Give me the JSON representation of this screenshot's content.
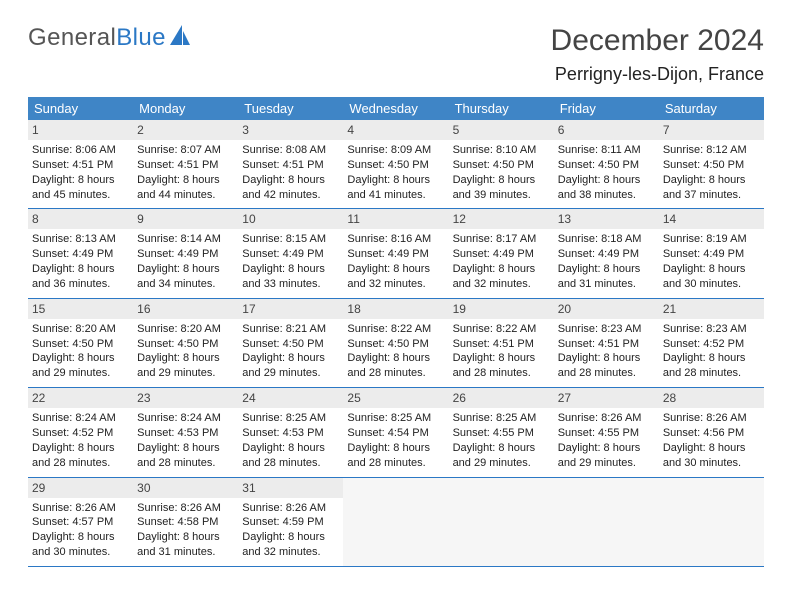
{
  "branding": {
    "general": "General",
    "blue": "Blue"
  },
  "header": {
    "month_title": "December 2024",
    "location": "Perrigny-les-Dijon, France"
  },
  "colors": {
    "header_bg": "#3f85c6",
    "rule": "#2b78c5",
    "daynum_bg": "#ececec"
  },
  "calendar": {
    "type": "table",
    "columns": [
      "Sunday",
      "Monday",
      "Tuesday",
      "Wednesday",
      "Thursday",
      "Friday",
      "Saturday"
    ],
    "weeks": [
      [
        {
          "day": "1",
          "sunrise": "Sunrise: 8:06 AM",
          "sunset": "Sunset: 4:51 PM",
          "daylight": "Daylight: 8 hours and 45 minutes."
        },
        {
          "day": "2",
          "sunrise": "Sunrise: 8:07 AM",
          "sunset": "Sunset: 4:51 PM",
          "daylight": "Daylight: 8 hours and 44 minutes."
        },
        {
          "day": "3",
          "sunrise": "Sunrise: 8:08 AM",
          "sunset": "Sunset: 4:51 PM",
          "daylight": "Daylight: 8 hours and 42 minutes."
        },
        {
          "day": "4",
          "sunrise": "Sunrise: 8:09 AM",
          "sunset": "Sunset: 4:50 PM",
          "daylight": "Daylight: 8 hours and 41 minutes."
        },
        {
          "day": "5",
          "sunrise": "Sunrise: 8:10 AM",
          "sunset": "Sunset: 4:50 PM",
          "daylight": "Daylight: 8 hours and 39 minutes."
        },
        {
          "day": "6",
          "sunrise": "Sunrise: 8:11 AM",
          "sunset": "Sunset: 4:50 PM",
          "daylight": "Daylight: 8 hours and 38 minutes."
        },
        {
          "day": "7",
          "sunrise": "Sunrise: 8:12 AM",
          "sunset": "Sunset: 4:50 PM",
          "daylight": "Daylight: 8 hours and 37 minutes."
        }
      ],
      [
        {
          "day": "8",
          "sunrise": "Sunrise: 8:13 AM",
          "sunset": "Sunset: 4:49 PM",
          "daylight": "Daylight: 8 hours and 36 minutes."
        },
        {
          "day": "9",
          "sunrise": "Sunrise: 8:14 AM",
          "sunset": "Sunset: 4:49 PM",
          "daylight": "Daylight: 8 hours and 34 minutes."
        },
        {
          "day": "10",
          "sunrise": "Sunrise: 8:15 AM",
          "sunset": "Sunset: 4:49 PM",
          "daylight": "Daylight: 8 hours and 33 minutes."
        },
        {
          "day": "11",
          "sunrise": "Sunrise: 8:16 AM",
          "sunset": "Sunset: 4:49 PM",
          "daylight": "Daylight: 8 hours and 32 minutes."
        },
        {
          "day": "12",
          "sunrise": "Sunrise: 8:17 AM",
          "sunset": "Sunset: 4:49 PM",
          "daylight": "Daylight: 8 hours and 32 minutes."
        },
        {
          "day": "13",
          "sunrise": "Sunrise: 8:18 AM",
          "sunset": "Sunset: 4:49 PM",
          "daylight": "Daylight: 8 hours and 31 minutes."
        },
        {
          "day": "14",
          "sunrise": "Sunrise: 8:19 AM",
          "sunset": "Sunset: 4:49 PM",
          "daylight": "Daylight: 8 hours and 30 minutes."
        }
      ],
      [
        {
          "day": "15",
          "sunrise": "Sunrise: 8:20 AM",
          "sunset": "Sunset: 4:50 PM",
          "daylight": "Daylight: 8 hours and 29 minutes."
        },
        {
          "day": "16",
          "sunrise": "Sunrise: 8:20 AM",
          "sunset": "Sunset: 4:50 PM",
          "daylight": "Daylight: 8 hours and 29 minutes."
        },
        {
          "day": "17",
          "sunrise": "Sunrise: 8:21 AM",
          "sunset": "Sunset: 4:50 PM",
          "daylight": "Daylight: 8 hours and 29 minutes."
        },
        {
          "day": "18",
          "sunrise": "Sunrise: 8:22 AM",
          "sunset": "Sunset: 4:50 PM",
          "daylight": "Daylight: 8 hours and 28 minutes."
        },
        {
          "day": "19",
          "sunrise": "Sunrise: 8:22 AM",
          "sunset": "Sunset: 4:51 PM",
          "daylight": "Daylight: 8 hours and 28 minutes."
        },
        {
          "day": "20",
          "sunrise": "Sunrise: 8:23 AM",
          "sunset": "Sunset: 4:51 PM",
          "daylight": "Daylight: 8 hours and 28 minutes."
        },
        {
          "day": "21",
          "sunrise": "Sunrise: 8:23 AM",
          "sunset": "Sunset: 4:52 PM",
          "daylight": "Daylight: 8 hours and 28 minutes."
        }
      ],
      [
        {
          "day": "22",
          "sunrise": "Sunrise: 8:24 AM",
          "sunset": "Sunset: 4:52 PM",
          "daylight": "Daylight: 8 hours and 28 minutes."
        },
        {
          "day": "23",
          "sunrise": "Sunrise: 8:24 AM",
          "sunset": "Sunset: 4:53 PM",
          "daylight": "Daylight: 8 hours and 28 minutes."
        },
        {
          "day": "24",
          "sunrise": "Sunrise: 8:25 AM",
          "sunset": "Sunset: 4:53 PM",
          "daylight": "Daylight: 8 hours and 28 minutes."
        },
        {
          "day": "25",
          "sunrise": "Sunrise: 8:25 AM",
          "sunset": "Sunset: 4:54 PM",
          "daylight": "Daylight: 8 hours and 28 minutes."
        },
        {
          "day": "26",
          "sunrise": "Sunrise: 8:25 AM",
          "sunset": "Sunset: 4:55 PM",
          "daylight": "Daylight: 8 hours and 29 minutes."
        },
        {
          "day": "27",
          "sunrise": "Sunrise: 8:26 AM",
          "sunset": "Sunset: 4:55 PM",
          "daylight": "Daylight: 8 hours and 29 minutes."
        },
        {
          "day": "28",
          "sunrise": "Sunrise: 8:26 AM",
          "sunset": "Sunset: 4:56 PM",
          "daylight": "Daylight: 8 hours and 30 minutes."
        }
      ],
      [
        {
          "day": "29",
          "sunrise": "Sunrise: 8:26 AM",
          "sunset": "Sunset: 4:57 PM",
          "daylight": "Daylight: 8 hours and 30 minutes."
        },
        {
          "day": "30",
          "sunrise": "Sunrise: 8:26 AM",
          "sunset": "Sunset: 4:58 PM",
          "daylight": "Daylight: 8 hours and 31 minutes."
        },
        {
          "day": "31",
          "sunrise": "Sunrise: 8:26 AM",
          "sunset": "Sunset: 4:59 PM",
          "daylight": "Daylight: 8 hours and 32 minutes."
        },
        null,
        null,
        null,
        null
      ]
    ]
  }
}
